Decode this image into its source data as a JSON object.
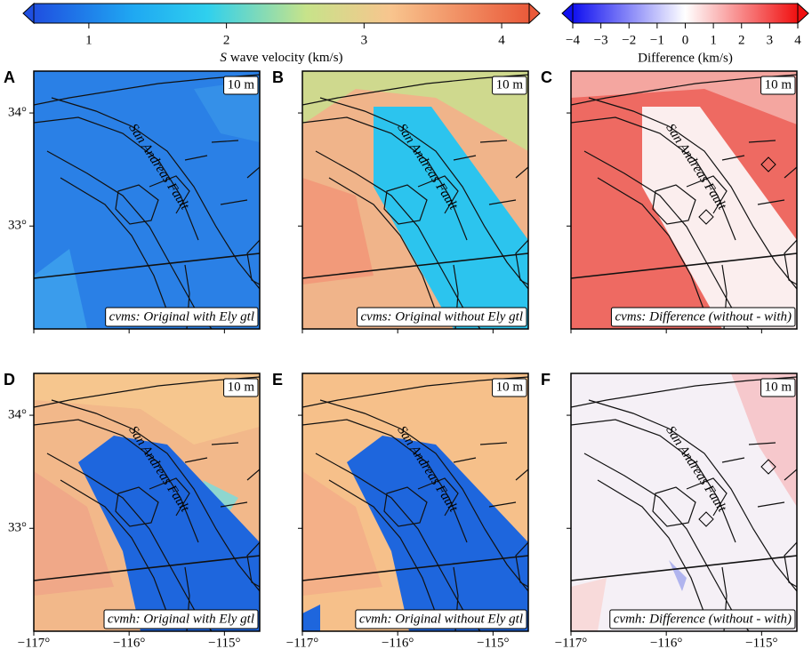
{
  "colorbars": [
    {
      "label_italic": "S",
      "label": "wave velocity (km/s)",
      "range": [
        0.6,
        4.2
      ],
      "ticks": [
        1,
        2,
        3,
        4
      ]
    },
    {
      "label": "Difference (km/s)",
      "range": [
        -4,
        4
      ],
      "ticks": [
        {
          "value": -4,
          "label": "−4"
        },
        {
          "value": -3,
          "label": "−3"
        },
        {
          "value": -2,
          "label": "−2"
        },
        {
          "value": -1,
          "label": "−1"
        },
        0,
        1,
        2,
        3,
        4
      ]
    }
  ],
  "map": {
    "lon_range": [
      -117,
      -114.63
    ],
    "lat_range": [
      32.09,
      34.37
    ],
    "lon_ticks": [
      {
        "value": -117,
        "label": "−117°"
      },
      {
        "value": -116,
        "label": "−116°"
      },
      {
        "value": -115,
        "label": "−115°"
      }
    ],
    "lat_ticks": [
      {
        "value": 34,
        "label": "34°"
      },
      {
        "value": 33,
        "label": "33°"
      }
    ],
    "fault_label": "San Andreas Fault"
  },
  "panels": [
    {
      "letter": "A",
      "depth": "10 m",
      "caption": "cvms: Original with Ely gtl"
    },
    {
      "letter": "B",
      "depth": "10 m",
      "caption": "cvms: Original without Ely gtl"
    },
    {
      "letter": "C",
      "depth": "10 m",
      "caption": "cvms: Difference (without - with)"
    },
    {
      "letter": "D",
      "depth": "10 m",
      "caption": "cvmh: Original with Ely gtl"
    },
    {
      "letter": "E",
      "depth": "10 m",
      "caption": "cvmh: Original without Ely gtl"
    },
    {
      "letter": "F",
      "depth": "10 m",
      "caption": "cvmh: Difference (without - with)"
    }
  ]
}
